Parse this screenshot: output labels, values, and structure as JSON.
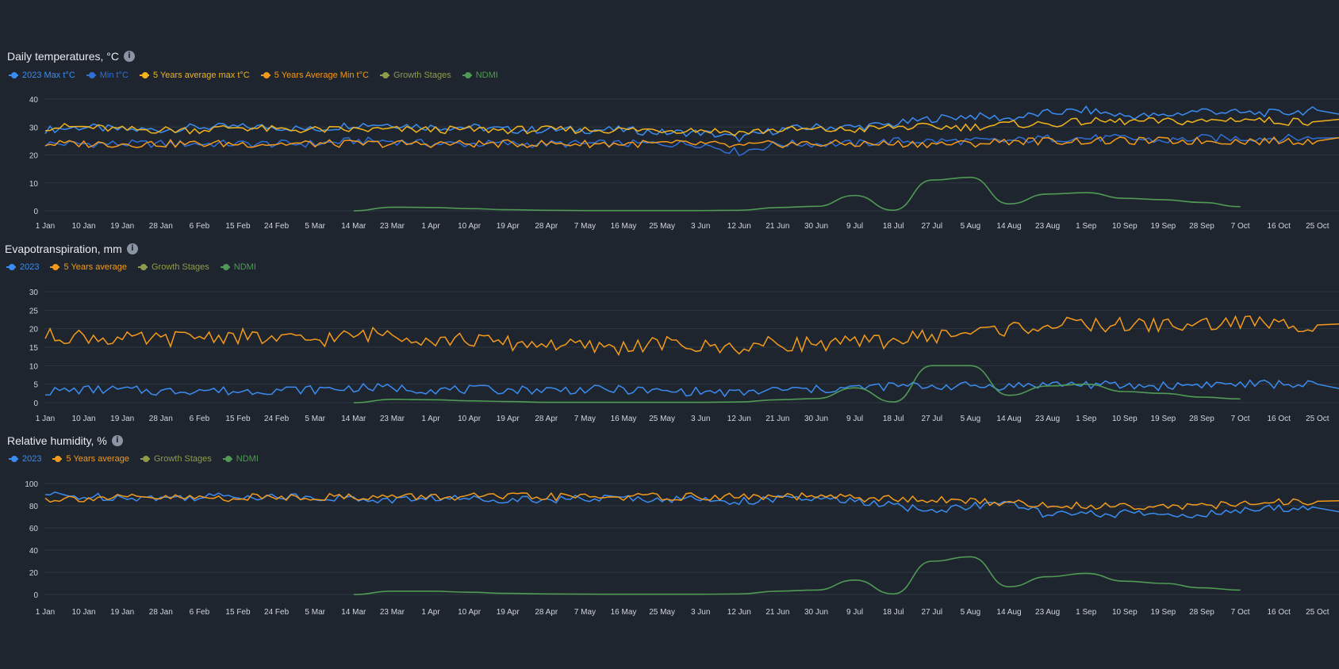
{
  "colors": {
    "max2023": "#3b8cf0",
    "min2023": "#2f6fd6",
    "avgMax": "#f2b31c",
    "avgMin": "#f29a1c",
    "growth": "#8f9a4a",
    "ndmi": "#4f9a55",
    "grid": "#2e3742"
  },
  "x_labels": [
    "1 Jan",
    "10 Jan",
    "19 Jan",
    "28 Jan",
    "6 Feb",
    "15 Feb",
    "24 Feb",
    "5 Mar",
    "14 Mar",
    "23 Mar",
    "1 Apr",
    "10 Apr",
    "19 Apr",
    "28 Apr",
    "7 May",
    "16 May",
    "25 May",
    "3 Jun",
    "12 Jun",
    "21 Jun",
    "30 Jun",
    "9 Jul",
    "18 Jul",
    "27 Jul",
    "5 Aug",
    "14 Aug",
    "23 Aug",
    "1 Sep",
    "10 Sep",
    "19 Sep",
    "28 Sep",
    "7 Oct",
    "16 Oct",
    "25 Oct"
  ],
  "temperature": {
    "title": "Daily temperatures, °C",
    "legend": [
      {
        "label": "2023 Max t°C",
        "color": "#3b8cf0"
      },
      {
        "label": "Min t°C",
        "color": "#2f6fd6"
      },
      {
        "label": "5 Years average max t°C",
        "color": "#f2b31c"
      },
      {
        "label": "5 Years Average Min t°C",
        "color": "#f29a1c"
      },
      {
        "label": "Growth Stages",
        "color": "#8f9a4a"
      },
      {
        "label": "NDMI",
        "color": "#4f9a55"
      }
    ]
  },
  "evapo": {
    "title": "Evapotranspiration, mm",
    "legend": [
      {
        "label": "2023",
        "color": "#3b8cf0"
      },
      {
        "label": "5 Years average",
        "color": "#f29a1c"
      },
      {
        "label": "Growth Stages",
        "color": "#8f9a4a"
      },
      {
        "label": "NDMI",
        "color": "#4f9a55"
      }
    ]
  },
  "humidity": {
    "title": "Relative humidity, %",
    "legend": [
      {
        "label": "2023",
        "color": "#3b8cf0"
      },
      {
        "label": "5 Years average",
        "color": "#f29a1c"
      },
      {
        "label": "Growth Stages",
        "color": "#8f9a4a"
      },
      {
        "label": "NDMI",
        "color": "#4f9a55"
      }
    ]
  },
  "chart_data": [
    {
      "type": "line",
      "title": "Daily temperatures, °C",
      "ylim": [
        0,
        40
      ],
      "yticks": [
        0,
        10,
        20,
        30,
        40
      ],
      "x_dates": [
        "1 Jan",
        "10 Jan",
        "19 Jan",
        "28 Jan",
        "6 Feb",
        "15 Feb",
        "24 Feb",
        "5 Mar",
        "14 Mar",
        "23 Mar",
        "1 Apr",
        "10 Apr",
        "19 Apr",
        "28 Apr",
        "7 May",
        "16 May",
        "25 May",
        "3 Jun",
        "12 Jun",
        "21 Jun",
        "30 Jun",
        "9 Jul",
        "18 Jul",
        "27 Jul",
        "5 Aug",
        "14 Aug",
        "23 Aug",
        "1 Sep",
        "10 Sep",
        "19 Sep",
        "28 Sep",
        "7 Oct",
        "16 Oct",
        "25 Oct"
      ],
      "series": [
        {
          "name": "2023 Max t°C",
          "values": [
            29,
            30,
            29,
            29,
            30,
            30,
            30,
            29,
            31,
            31,
            30,
            30,
            29,
            29,
            29,
            29,
            28,
            28,
            26,
            29,
            30,
            30,
            31,
            33,
            34,
            33,
            35,
            36,
            34,
            34,
            36,
            35,
            35,
            36
          ]
        },
        {
          "name": "Min t°C",
          "values": [
            24,
            24,
            24,
            24,
            24,
            24,
            24,
            24,
            25,
            25,
            24,
            24,
            24,
            24,
            24,
            24,
            24,
            24,
            21,
            24,
            24,
            24,
            25,
            25,
            25,
            25,
            26,
            26,
            26,
            25,
            26,
            26,
            26,
            26
          ]
        },
        {
          "name": "5 Years average max t°C",
          "values": [
            30,
            30,
            29,
            29,
            29,
            30,
            29,
            29,
            29,
            29,
            29,
            29,
            29,
            29,
            29,
            29,
            29,
            29,
            28,
            29,
            29,
            29,
            30,
            30,
            30,
            31,
            31,
            32,
            32,
            32,
            32,
            33,
            32,
            32
          ]
        },
        {
          "name": "5 Years Average Min t°C",
          "values": [
            24,
            24,
            24,
            24,
            24,
            24,
            24,
            24,
            24,
            24,
            24,
            24,
            24,
            24,
            24,
            24,
            24,
            24,
            23,
            24,
            24,
            24,
            24,
            24,
            24,
            25,
            25,
            25,
            25,
            25,
            25,
            25,
            25,
            25
          ]
        },
        {
          "name": "NDMI",
          "x_from": "14 Mar",
          "values": [
            null,
            null,
            null,
            null,
            null,
            null,
            null,
            null,
            0,
            1.3,
            1.2,
            0.8,
            0.4,
            0.2,
            0.1,
            0.1,
            0.1,
            0.1,
            0.2,
            1.2,
            1.6,
            5.5,
            0.2,
            11,
            12,
            2.5,
            6,
            6.5,
            4.5,
            4,
            3,
            1.5,
            null,
            null
          ]
        }
      ]
    },
    {
      "type": "line",
      "title": "Evapotranspiration, mm",
      "ylim": [
        0,
        30
      ],
      "yticks": [
        0,
        5,
        10,
        15,
        20,
        25,
        30
      ],
      "x_dates": [
        "1 Jan",
        "10 Jan",
        "19 Jan",
        "28 Jan",
        "6 Feb",
        "15 Feb",
        "24 Feb",
        "5 Mar",
        "14 Mar",
        "23 Mar",
        "1 Apr",
        "10 Apr",
        "19 Apr",
        "28 Apr",
        "7 May",
        "16 May",
        "25 May",
        "3 Jun",
        "12 Jun",
        "21 Jun",
        "30 Jun",
        "9 Jul",
        "18 Jul",
        "27 Jul",
        "5 Aug",
        "14 Aug",
        "23 Aug",
        "1 Sep",
        "10 Sep",
        "19 Sep",
        "28 Sep",
        "7 Oct",
        "16 Oct",
        "25 Oct"
      ],
      "series": [
        {
          "name": "2023",
          "values": [
            3,
            3.5,
            3.5,
            3,
            3.5,
            3,
            3.5,
            3.5,
            4,
            4,
            3.5,
            3.5,
            3.5,
            3.5,
            3.5,
            3.5,
            3,
            3,
            2.5,
            3.5,
            3.5,
            4,
            4.5,
            4.5,
            4.5,
            4.5,
            5,
            5,
            4.5,
            4.5,
            5,
            5,
            5,
            5
          ]
        },
        {
          "name": "5 Years average",
          "values": [
            18,
            18,
            17,
            17,
            18,
            18,
            17,
            17,
            18,
            19,
            17,
            17,
            16,
            16,
            15,
            15,
            16,
            15,
            15,
            16,
            16,
            16,
            17,
            18,
            19,
            20,
            21,
            21,
            21,
            21,
            21,
            22,
            21,
            21
          ]
        },
        {
          "name": "NDMI",
          "x_from": "14 Mar",
          "values": [
            null,
            null,
            null,
            null,
            null,
            null,
            null,
            null,
            0,
            0.9,
            0.8,
            0.5,
            0.3,
            0.1,
            0.1,
            0.1,
            0.1,
            0.1,
            0.2,
            0.8,
            1.1,
            4,
            0.2,
            10,
            10,
            2,
            4.5,
            5,
            3,
            2.5,
            1.5,
            1,
            null,
            null
          ]
        }
      ]
    },
    {
      "type": "line",
      "title": "Relative humidity, %",
      "ylim": [
        0,
        100
      ],
      "yticks": [
        0,
        20,
        40,
        60,
        80,
        100
      ],
      "x_dates": [
        "1 Jan",
        "10 Jan",
        "19 Jan",
        "28 Jan",
        "6 Feb",
        "15 Feb",
        "24 Feb",
        "5 Mar",
        "14 Mar",
        "23 Mar",
        "1 Apr",
        "10 Apr",
        "19 Apr",
        "28 Apr",
        "7 May",
        "16 May",
        "25 May",
        "3 Jun",
        "12 Jun",
        "21 Jun",
        "30 Jun",
        "9 Jul",
        "18 Jul",
        "27 Jul",
        "5 Aug",
        "14 Aug",
        "23 Aug",
        "1 Sep",
        "10 Sep",
        "19 Sep",
        "28 Sep",
        "7 Oct",
        "16 Oct",
        "25 Oct"
      ],
      "series": [
        {
          "name": "2023",
          "values": [
            90,
            88,
            88,
            87,
            88,
            89,
            88,
            88,
            86,
            85,
            87,
            86,
            86,
            86,
            86,
            87,
            86,
            86,
            84,
            86,
            86,
            84,
            80,
            75,
            80,
            82,
            72,
            72,
            73,
            72,
            72,
            75,
            78,
            78
          ]
        },
        {
          "name": "5 Years average",
          "values": [
            86,
            87,
            87,
            87,
            87,
            87,
            88,
            88,
            88,
            88,
            88,
            88,
            88,
            88,
            88,
            88,
            88,
            88,
            88,
            88,
            88,
            87,
            86,
            85,
            84,
            83,
            80,
            80,
            80,
            80,
            80,
            81,
            83,
            84
          ]
        },
        {
          "name": "NDMI",
          "x_from": "14 Mar",
          "values": [
            null,
            null,
            null,
            null,
            null,
            null,
            null,
            null,
            0,
            3,
            3,
            2,
            1,
            0.5,
            0.3,
            0.2,
            0.2,
            0.2,
            0.5,
            3,
            4,
            13,
            0.5,
            30,
            34,
            7,
            16,
            19,
            12,
            10,
            6,
            4,
            null,
            null
          ]
        }
      ]
    }
  ]
}
